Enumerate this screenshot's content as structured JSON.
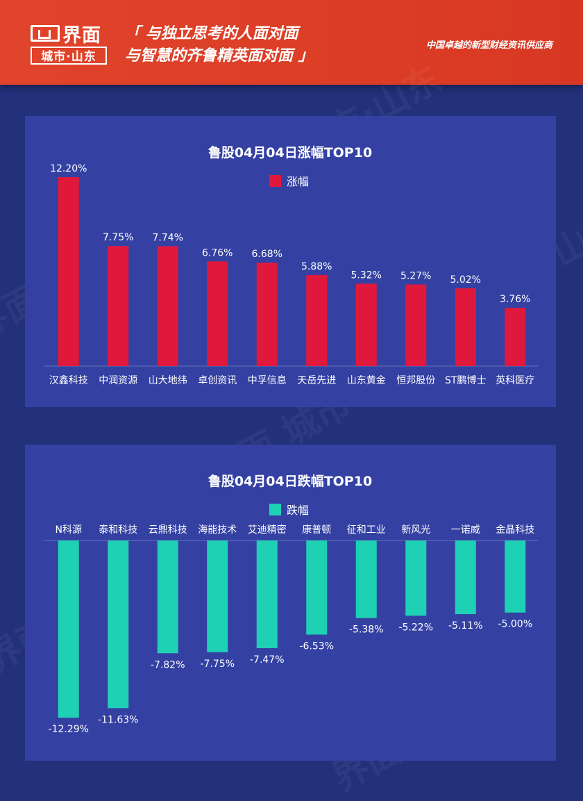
{
  "header": {
    "brand_name": "界面",
    "brand_sub": "城市·山东",
    "slogan_line1": "「 与独立思考的人面对面",
    "slogan_line2": "与智慧的齐鲁精英面对面 」",
    "tagline": "中国卓越的新型财经资讯供应商"
  },
  "watermark": "界面 城市·山东",
  "colors": {
    "gain": "#e0193c",
    "loss": "#1fd1b4",
    "panel": "#3441a3",
    "background": "#23307a",
    "header": "#e0442a"
  },
  "chart_data": [
    {
      "type": "bar",
      "title": "鲁股04月04日涨幅TOP10",
      "legend": "top",
      "series": [
        {
          "name": "涨幅"
        }
      ],
      "categories": [
        "汉鑫科技",
        "中润资源",
        "山大地纬",
        "卓创资讯",
        "中孚信息",
        "天岳先进",
        "山东黄金",
        "恒邦股份",
        "ST鹏博士",
        "英科医疗"
      ],
      "values": [
        12.2,
        7.75,
        7.74,
        6.76,
        6.68,
        5.88,
        5.32,
        5.27,
        5.02,
        3.76
      ],
      "labels": [
        "12.20%",
        "7.75%",
        "7.74%",
        "6.76%",
        "6.68%",
        "5.88%",
        "5.32%",
        "5.27%",
        "5.02%",
        "3.76%"
      ],
      "ylim": [
        0,
        12.2
      ],
      "grid": false
    },
    {
      "type": "bar",
      "title": "鲁股04月04日跌幅TOP10",
      "legend": "top",
      "series": [
        {
          "name": "跌幅"
        }
      ],
      "categories": [
        "N科源",
        "泰和科技",
        "云鼎科技",
        "海能技术",
        "艾迪精密",
        "康普顿",
        "征和工业",
        "新风光",
        "一诺威",
        "金晶科技"
      ],
      "values": [
        -12.29,
        -11.63,
        -7.82,
        -7.75,
        -7.47,
        -6.53,
        -5.38,
        -5.22,
        -5.11,
        -5.0
      ],
      "labels": [
        "-12.29%",
        "-11.63%",
        "-7.82%",
        "-7.75%",
        "-7.47%",
        "-6.53%",
        "-5.38%",
        "-5.22%",
        "-5.11%",
        "-5.00%"
      ],
      "ylim": [
        -12.29,
        0
      ],
      "grid": false
    }
  ]
}
